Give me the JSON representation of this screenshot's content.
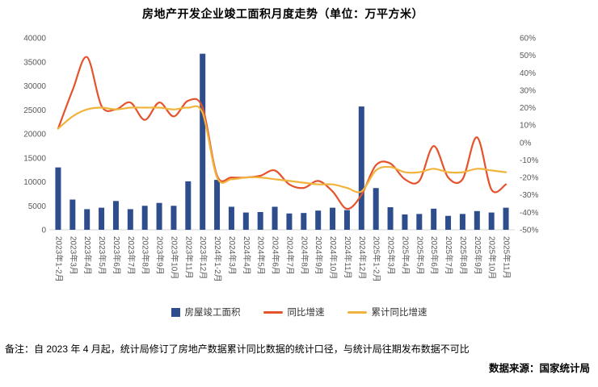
{
  "page": {
    "title": "房地产开发企业竣工面积月度走势（单位：万平方米）",
    "note": "备注：自 2023 年 4 月起，统计局修订了房地产数据累计同比数据的统计口径，与统计局往期发布数据不可比",
    "source": "数据来源：国家统计局"
  },
  "colors": {
    "bar": "#2e4d8d",
    "yoy_line": "#e5532c",
    "cum_line": "#f0b43c",
    "axis_text": "#595959"
  },
  "chart_data": {
    "type": "bar+line combo",
    "title": "房地产开发企业竣工面积月度走势（单位：万平方米）",
    "grid": false,
    "legend_position": "bottom",
    "categories": [
      "2023年1-2月",
      "2023年3月",
      "2023年4月",
      "2023年5月",
      "2023年6月",
      "2023年7月",
      "2023年8月",
      "2023年9月",
      "2023年10月",
      "2023年11月",
      "2023年12月",
      "2024年1-2月",
      "2024年3月",
      "2024年4月",
      "2024年5月",
      "2024年6月",
      "2024年7月",
      "2024年8月",
      "2024年9月",
      "2024年10月",
      "2024年11月",
      "2024年12月",
      "2025年1-2月",
      "2025年3月",
      "2025年4月",
      "2025年5月",
      "2025年6月",
      "2025年7月",
      "2025年8月",
      "2025年9月",
      "2025年10月",
      "2025年11月"
    ],
    "series": [
      {
        "name": "房屋竣工面积",
        "type": "bar",
        "axis": "left",
        "values": [
          13000,
          6300,
          4300,
          4600,
          6000,
          4300,
          5000,
          5600,
          5000,
          10100,
          36700,
          10400,
          4800,
          3600,
          3700,
          4800,
          3400,
          3500,
          4000,
          4600,
          4100,
          25700,
          8700,
          4700,
          3200,
          3300,
          4400,
          2900,
          3300,
          3900,
          3600,
          4600
        ]
      },
      {
        "name": "同比增速",
        "type": "line",
        "axis": "right",
        "values": [
          8,
          30,
          49,
          21,
          19,
          23,
          13,
          23,
          15,
          24,
          20,
          -19,
          -20,
          -20,
          -19,
          -16,
          -24,
          -26,
          -22,
          -28,
          -38,
          -30,
          -13,
          -12,
          -21,
          -22,
          -2,
          -20,
          -21,
          3,
          -27,
          -24
        ]
      },
      {
        "name": "累计同比增速",
        "type": "line",
        "axis": "right",
        "values": [
          8,
          15,
          19,
          20,
          19,
          20,
          20,
          20,
          19,
          20,
          17,
          -20,
          -21,
          -20,
          -20,
          -21,
          -22,
          -23,
          -24,
          -24,
          -26,
          -28,
          -16,
          -14,
          -17,
          -17,
          -15,
          -17,
          -17,
          -15,
          -16,
          -17
        ]
      }
    ],
    "left_axis": {
      "min": 0,
      "max": 40000,
      "step": 5000,
      "ticks": [
        "0",
        "5000",
        "10000",
        "15000",
        "20000",
        "25000",
        "30000",
        "35000",
        "40000"
      ]
    },
    "right_axis": {
      "min": -50,
      "max": 60,
      "step": 10,
      "suffix": "%",
      "ticks": [
        "-50%",
        "-40%",
        "-30%",
        "-20%",
        "-10%",
        "0%",
        "10%",
        "20%",
        "30%",
        "40%",
        "50%",
        "60%"
      ]
    }
  }
}
